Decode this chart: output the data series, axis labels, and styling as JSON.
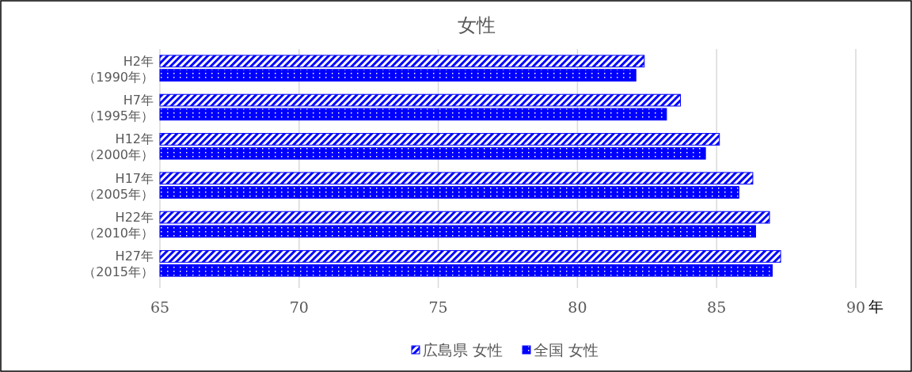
{
  "chart_data": {
    "type": "bar",
    "orientation": "horizontal",
    "title": "女性",
    "xlabel": "年",
    "categories": [
      "H2年（1990年）",
      "H7年（1995年）",
      "H12年（2000年）",
      "H17年（2005年）",
      "H22年（2010年）",
      "H27年（2015年）"
    ],
    "series": [
      {
        "name": "広島県 女性",
        "color": "#0000ff",
        "values": [
          82.4,
          83.7,
          85.1,
          86.3,
          86.9,
          87.3
        ]
      },
      {
        "name": "全国 女性",
        "color": "#0000ff",
        "values": [
          82.1,
          83.2,
          84.6,
          85.8,
          86.4,
          87.0
        ]
      }
    ],
    "xlim": [
      65,
      90
    ],
    "xticks": [
      65,
      70,
      75,
      80,
      85,
      90
    ],
    "grid": "x",
    "legend": "bottom"
  }
}
